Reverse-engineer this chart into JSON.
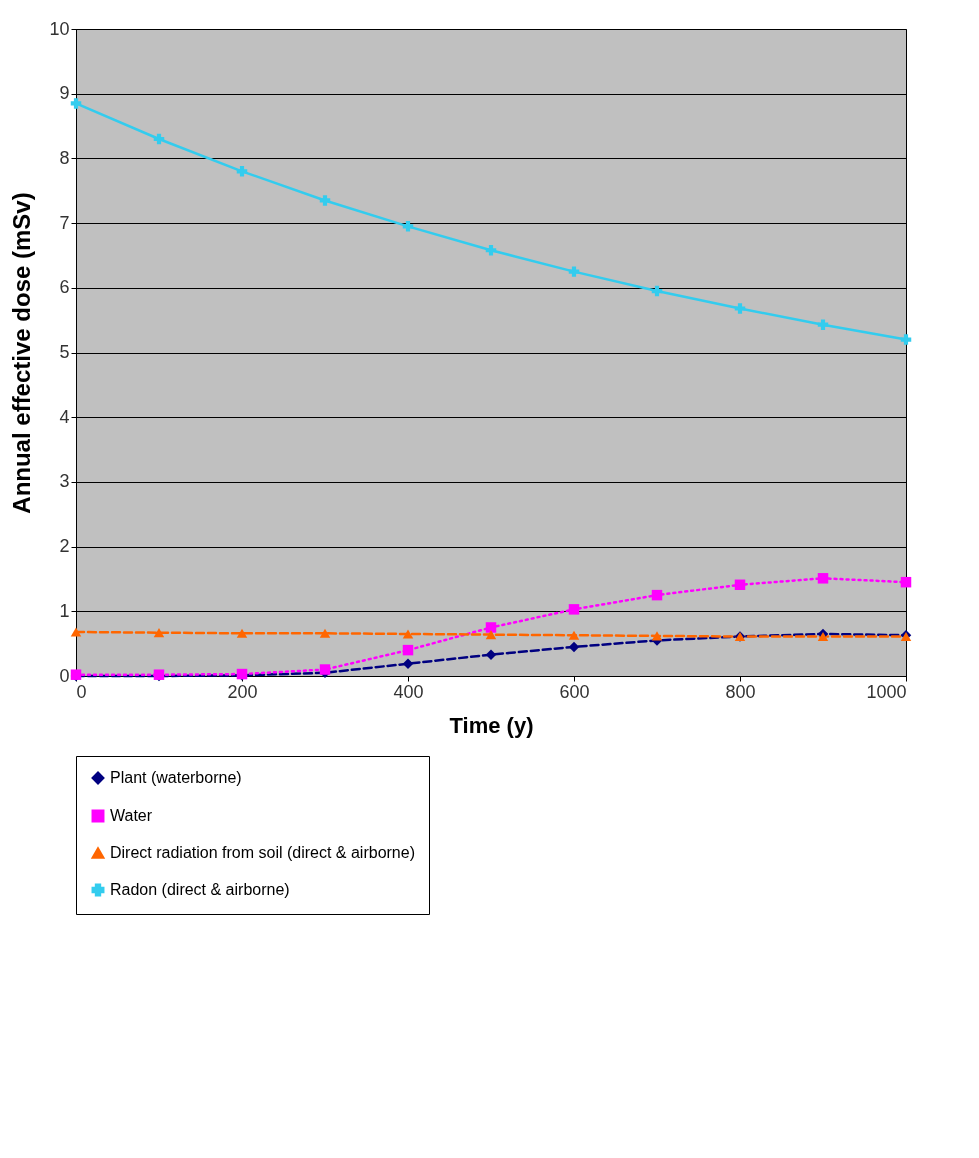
{
  "chart_data": {
    "type": "line",
    "xlabel": "Time (y)",
    "ylabel": "Annual effective dose (mSv)",
    "x": [
      0,
      100,
      200,
      300,
      400,
      500,
      600,
      700,
      800,
      900,
      1000
    ],
    "series": [
      {
        "name": "Plant (waterborne)",
        "color": "#000080",
        "marker": "diamond",
        "line_style": "dashed",
        "values": [
          0,
          0,
          0.01,
          0.05,
          0.19,
          0.33,
          0.45,
          0.55,
          0.61,
          0.65,
          0.63
        ]
      },
      {
        "name": "Water",
        "color": "#ff00ff",
        "marker": "square",
        "line_style": "dotted",
        "values": [
          0.02,
          0.02,
          0.03,
          0.1,
          0.4,
          0.75,
          1.03,
          1.25,
          1.41,
          1.51,
          1.45
        ]
      },
      {
        "name": "Direct radiation from soil (direct & airborne)",
        "color": "#ff6600",
        "marker": "triangle",
        "line_style": "dashed",
        "values": [
          0.68,
          0.67,
          0.66,
          0.66,
          0.65,
          0.64,
          0.63,
          0.62,
          0.61,
          0.61,
          0.61
        ]
      },
      {
        "name": "Radon (direct & airborne)",
        "color": "#33ccee",
        "marker": "cross",
        "line_style": "solid",
        "values": [
          8.85,
          8.3,
          7.8,
          7.35,
          6.95,
          6.58,
          6.25,
          5.95,
          5.68,
          5.43,
          5.2
        ]
      }
    ],
    "xlim": [
      0,
      1000
    ],
    "xticks": [
      0,
      200,
      400,
      600,
      800,
      1000
    ],
    "ylim": [
      0,
      10
    ],
    "yticks": [
      0,
      1,
      2,
      3,
      4,
      5,
      6,
      7,
      8,
      9,
      10
    ],
    "grid": "y",
    "legend": "bottom"
  }
}
